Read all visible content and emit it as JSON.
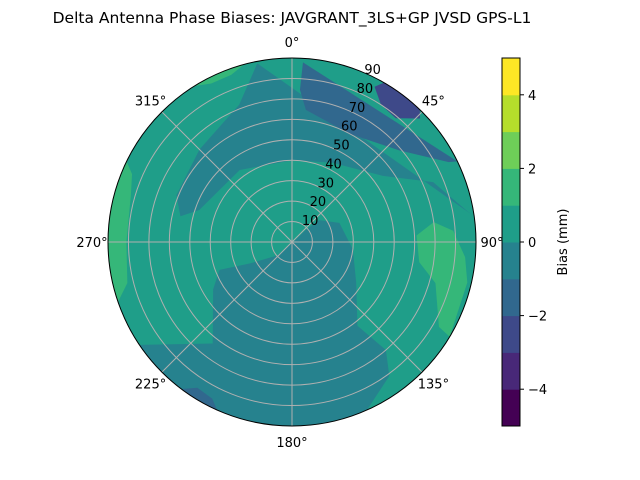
{
  "chart_data": {
    "type": "contour",
    "projection": "polar",
    "title": "Delta Antenna Phase Biases: JAVGRANT_3LS+GP JVSD GPS-L1",
    "theta_zero": "north",
    "theta_direction": "clockwise",
    "theta_ticks": [
      "0°",
      "45°",
      "90°",
      "135°",
      "180°",
      "225°",
      "270°",
      "315°"
    ],
    "r_ticks": [
      "10",
      "20",
      "30",
      "40",
      "50",
      "60",
      "70",
      "80",
      "90"
    ],
    "r_range": [
      0,
      90
    ],
    "grid": true,
    "colorbar": {
      "label": "Bias (mm)",
      "ticks": [
        "−4",
        "−2",
        "0",
        "2",
        "4"
      ],
      "range": [
        -5,
        5
      ],
      "levels": [
        -5,
        -4,
        -3,
        -2,
        -1,
        0,
        1,
        2,
        3,
        4,
        5
      ],
      "colors": [
        "#440154",
        "#482878",
        "#3e4989",
        "#31688e",
        "#26828e",
        "#1f9e89",
        "#35b779",
        "#6ece58",
        "#b5de2b",
        "#fde725"
      ],
      "colormap": "viridis",
      "placement": "right"
    },
    "background_band": [
      0,
      1
    ],
    "regions": [
      {
        "band": [
          -1,
          0
        ],
        "points": [
          [
            236,
            90
          ],
          [
            218,
            63
          ],
          [
            239,
            45
          ],
          [
            249,
            38
          ],
          [
            243,
            23
          ],
          [
            228,
            10
          ],
          [
            200,
            1
          ],
          [
            49,
            9
          ],
          [
            51,
            17
          ],
          [
            68,
            25
          ],
          [
            97,
            30
          ],
          [
            122,
            37
          ],
          [
            142,
            52
          ],
          [
            139,
            70
          ],
          [
            144,
            81
          ],
          [
            156,
            90
          ]
        ]
      },
      {
        "band": [
          -1,
          0
        ],
        "points": [
          [
            349,
            89
          ],
          [
            339,
            72
          ],
          [
            315,
            64
          ],
          [
            292,
            61
          ],
          [
            283,
            56
          ],
          [
            289,
            48
          ],
          [
            324,
            43.5
          ],
          [
            0,
            40
          ],
          [
            27,
            43.5
          ],
          [
            54,
            55
          ],
          [
            67,
            75
          ],
          [
            80,
            87
          ],
          [
            82,
            90
          ]
        ]
      },
      {
        "band": [
          -2,
          -1
        ],
        "points": [
          [
            3.5,
            88
          ],
          [
            3,
            74.5
          ],
          [
            6,
            65
          ],
          [
            28,
            60
          ],
          [
            49.5,
            69
          ],
          [
            63,
            86
          ],
          [
            64,
            90
          ]
        ]
      },
      {
        "band": [
          -2,
          -1
        ],
        "points": [
          [
            204,
            90
          ],
          [
            207,
            86
          ],
          [
            213,
            85
          ],
          [
            217,
            90
          ]
        ]
      },
      {
        "band": [
          -3,
          -2
        ],
        "points": [
          [
            28,
            86
          ],
          [
            33,
            80
          ],
          [
            40,
            79
          ],
          [
            46,
            87
          ],
          [
            44,
            90
          ],
          [
            30,
            90
          ]
        ]
      },
      {
        "band": [
          1,
          2
        ],
        "points": [
          [
            251,
            90
          ],
          [
            256,
            83
          ],
          [
            270,
            81
          ],
          [
            286,
            82
          ],
          [
            293,
            85
          ],
          [
            296,
            90
          ]
        ]
      },
      {
        "band": [
          1,
          2
        ],
        "points": [
          [
            87,
            61
          ],
          [
            82,
            70
          ],
          [
            86,
            79
          ],
          [
            95,
            85
          ],
          [
            103,
            88
          ],
          [
            121,
            90
          ],
          [
            120,
            83
          ],
          [
            106,
            73
          ],
          [
            99,
            63
          ]
        ]
      },
      {
        "band": [
          1,
          2
        ],
        "points": [
          [
            328,
            90
          ],
          [
            333,
            87
          ],
          [
            340,
            87
          ],
          [
            345,
            90
          ]
        ]
      }
    ]
  }
}
